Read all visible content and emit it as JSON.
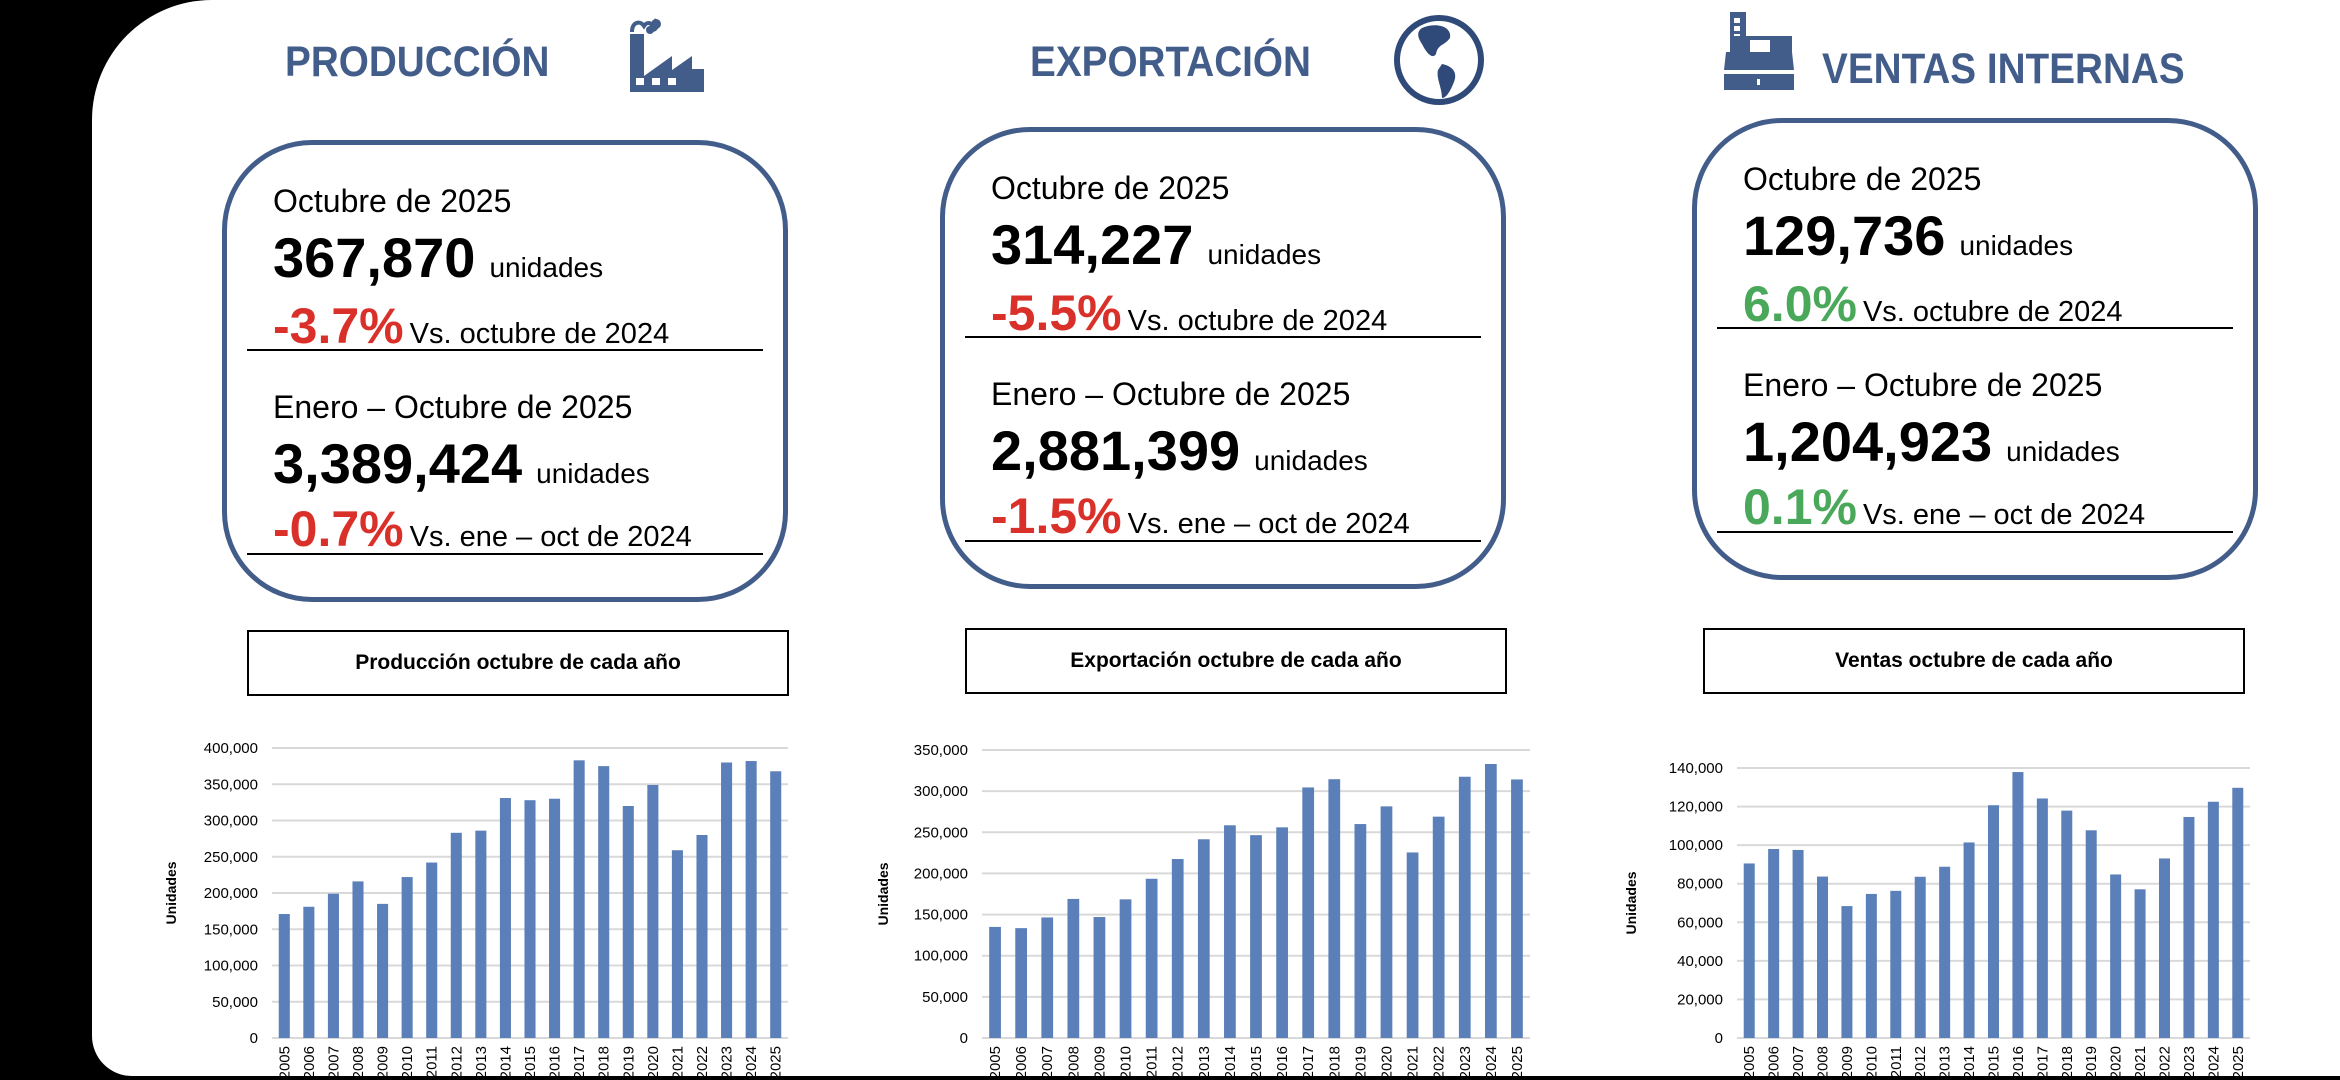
{
  "colors": {
    "brand": "#435d8b",
    "negative": "#d9302a",
    "positive": "#4aa85a",
    "bar": "#5b7fb8",
    "grid": "#d9d9d9"
  },
  "sections": [
    {
      "title": "PRODUCCIÓN",
      "icon": "factory-icon",
      "month_label": "Octubre de 2025",
      "month_value": "367,870",
      "unit": "unidades",
      "month_change": "-3.7%",
      "month_change_sign": "negative",
      "month_vs": "Vs. octubre de 2024",
      "ytd_label": "Enero – Octubre de 2025",
      "ytd_value": "3,389,424",
      "ytd_change": "-0.7%",
      "ytd_change_sign": "negative",
      "ytd_vs": "Vs. ene – oct de 2024",
      "chart_title": "Producción octubre de cada año"
    },
    {
      "title": "EXPORTACIÓN",
      "icon": "globe-icon",
      "month_label": "Octubre de 2025",
      "month_value": "314,227",
      "unit": "unidades",
      "month_change": "-5.5%",
      "month_change_sign": "negative",
      "month_vs": "Vs. octubre de 2024",
      "ytd_label": "Enero – Octubre de 2025",
      "ytd_value": "2,881,399",
      "ytd_change": "-1.5%",
      "ytd_change_sign": "negative",
      "ytd_vs": "Vs. ene – oct de 2024",
      "chart_title": "Exportación octubre de cada año"
    },
    {
      "title": "VENTAS INTERNAS",
      "icon": "cash-register-icon",
      "month_label": "Octubre de 2025",
      "month_value": "129,736",
      "unit": "unidades",
      "month_change": "6.0%",
      "month_change_sign": "positive",
      "month_vs": "Vs. octubre de 2024",
      "ytd_label": "Enero – Octubre de 2025",
      "ytd_value": "1,204,923",
      "ytd_change": "0.1%",
      "ytd_change_sign": "positive",
      "ytd_vs": "Vs. ene – oct de 2024",
      "chart_title": "Ventas octubre de cada año"
    }
  ],
  "chart_data": [
    {
      "type": "bar",
      "title": "Producción octubre de cada año",
      "xlabel": "",
      "ylabel": "Unidades",
      "ylim": [
        0,
        400000
      ],
      "ytick_step": 50000,
      "grid": true,
      "categories": [
        "2005",
        "2006",
        "2007",
        "2008",
        "2009",
        "2010",
        "2011",
        "2012",
        "2013",
        "2014",
        "2015",
        "2016",
        "2017",
        "2018",
        "2019",
        "2020",
        "2021",
        "2022",
        "2023",
        "2024",
        "2025"
      ],
      "values": [
        171000,
        181000,
        199000,
        216000,
        185000,
        222000,
        242000,
        283000,
        286000,
        331000,
        328000,
        330000,
        383000,
        375000,
        320000,
        349000,
        259000,
        280000,
        380000,
        382000,
        367870
      ]
    },
    {
      "type": "bar",
      "title": "Exportación octubre de cada año",
      "xlabel": "",
      "ylabel": "Unidades",
      "ylim": [
        0,
        350000
      ],
      "ytick_step": 50000,
      "grid": true,
      "categories": [
        "2005",
        "2006",
        "2007",
        "2008",
        "2009",
        "2010",
        "2011",
        "2012",
        "2013",
        "2014",
        "2015",
        "2016",
        "2017",
        "2018",
        "2019",
        "2020",
        "2021",
        "2022",
        "2023",
        "2024",
        "2025"
      ],
      "values": [
        135000,
        133500,
        146500,
        169000,
        147000,
        168500,
        193500,
        217500,
        241500,
        258500,
        246500,
        256000,
        304500,
        314500,
        260000,
        281500,
        225500,
        269000,
        317500,
        333000,
        314227
      ]
    },
    {
      "type": "bar",
      "title": "Ventas octubre de cada año",
      "xlabel": "",
      "ylabel": "Unidades",
      "ylim": [
        0,
        140000
      ],
      "ytick_step": 20000,
      "grid": true,
      "categories": [
        "2005",
        "2006",
        "2007",
        "2008",
        "2009",
        "2010",
        "2011",
        "2012",
        "2013",
        "2014",
        "2015",
        "2016",
        "2017",
        "2018",
        "2019",
        "2020",
        "2021",
        "2022",
        "2023",
        "2024",
        "2025"
      ],
      "values": [
        90500,
        98000,
        97500,
        83700,
        68400,
        74700,
        76300,
        83600,
        88800,
        101400,
        120700,
        137900,
        124200,
        117900,
        107700,
        84800,
        77100,
        93100,
        114600,
        122500,
        129736
      ]
    }
  ]
}
